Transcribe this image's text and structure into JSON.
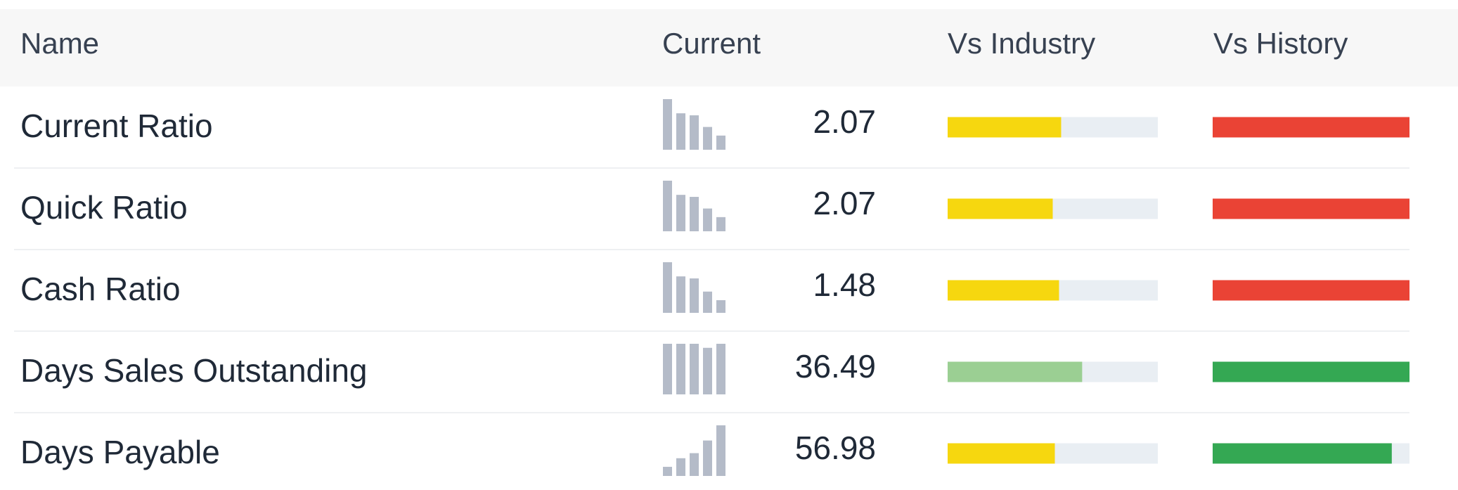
{
  "table": {
    "headers": [
      "Name",
      "Current",
      "Vs Industry",
      "Vs History"
    ],
    "rows": [
      {
        "name": "Current Ratio",
        "current": 2.07,
        "sparkline": [
          100,
          72,
          68,
          45,
          28
        ],
        "vs_industry": {
          "value": 54,
          "color": "#f6d70f"
        },
        "vs_history": {
          "value": 100,
          "color": "#ea4335"
        }
      },
      {
        "name": "Quick Ratio",
        "current": 2.07,
        "sparkline": [
          100,
          72,
          68,
          45,
          28
        ],
        "vs_industry": {
          "value": 50,
          "color": "#f6d70f"
        },
        "vs_history": {
          "value": 100,
          "color": "#ea4335"
        }
      },
      {
        "name": "Cash Ratio",
        "current": 1.48,
        "sparkline": [
          100,
          72,
          68,
          42,
          25
        ],
        "vs_industry": {
          "value": 53,
          "color": "#f6d70f"
        },
        "vs_history": {
          "value": 100,
          "color": "#ea4335"
        }
      },
      {
        "name": "Days Sales Outstanding",
        "current": 36.49,
        "sparkline": [
          100,
          100,
          100,
          92,
          100
        ],
        "vs_industry": {
          "value": 64,
          "color": "#9bcf93"
        },
        "vs_history": {
          "value": 100,
          "color": "#34a853"
        }
      },
      {
        "name": "Days Payable",
        "current": 56.98,
        "sparkline": [
          18,
          35,
          45,
          70,
          100
        ],
        "vs_industry": {
          "value": 51,
          "color": "#f6d70f"
        },
        "vs_history": {
          "value": 91,
          "color": "#34a853"
        }
      }
    ]
  }
}
